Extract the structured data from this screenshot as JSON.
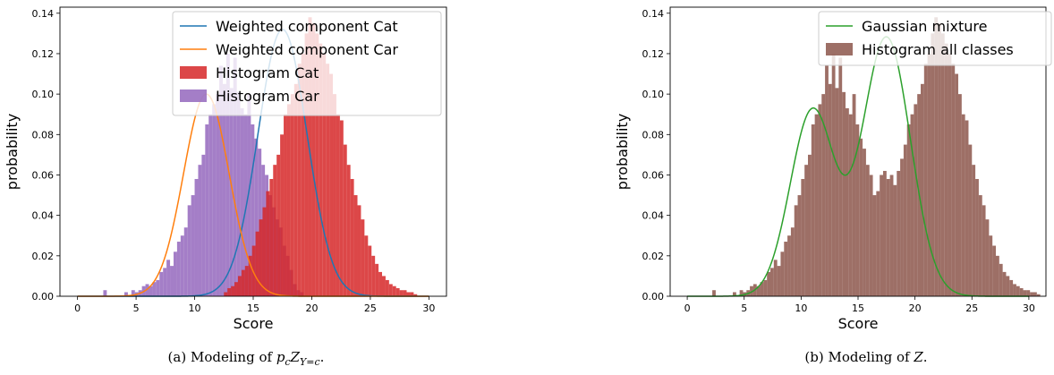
{
  "chart_data": [
    {
      "type": "histogram+line",
      "xlabel": "Score",
      "ylabel": "probability",
      "xlim": [
        -1.5,
        31.5
      ],
      "ylim": [
        0,
        0.143
      ],
      "xticks": [
        0,
        5,
        10,
        15,
        20,
        25,
        30
      ],
      "yticks": [
        0.0,
        0.02,
        0.04,
        0.06,
        0.08,
        0.1,
        0.12,
        0.14
      ],
      "legend_position": "top-right",
      "legend": [
        "Weighted component Cat",
        "Weighted component Car",
        "Histogram Cat",
        "Histogram Car"
      ],
      "caption_prefix": "(a) Modeling of ",
      "caption_math": "p",
      "caption_sub": "c",
      "caption_math2": "Z",
      "caption_sub2": "Y=c",
      "caption_end": ".",
      "histograms": [
        {
          "name": "Histogram Car",
          "color": "#9467bd",
          "bin_width": 0.3,
          "start": 2.2,
          "values": [
            0.003,
            0,
            0,
            0,
            0,
            0,
            0.002,
            0,
            0.003,
            0.002,
            0.003,
            0.005,
            0.006,
            0.005,
            0.007,
            0.008,
            0.012,
            0.014,
            0.018,
            0.015,
            0.022,
            0.027,
            0.03,
            0.034,
            0.045,
            0.05,
            0.058,
            0.065,
            0.07,
            0.085,
            0.09,
            0.095,
            0.1,
            0.114,
            0.105,
            0.12,
            0.103,
            0.118,
            0.101,
            0.093,
            0.09,
            0.1,
            0.085,
            0.078,
            0.073,
            0.065,
            0.06,
            0.05,
            0.044,
            0.038,
            0.034,
            0.025,
            0.02,
            0.013,
            0.006,
            0.003,
            0.002
          ]
        },
        {
          "name": "Histogram Cat",
          "color": "#d62728",
          "bin_width": 0.3,
          "start": 12.5,
          "values": [
            0.002,
            0.004,
            0.005,
            0.007,
            0.01,
            0.013,
            0.015,
            0.02,
            0.025,
            0.032,
            0.038,
            0.044,
            0.052,
            0.058,
            0.065,
            0.07,
            0.08,
            0.09,
            0.095,
            0.1,
            0.105,
            0.115,
            0.12,
            0.13,
            0.138,
            0.135,
            0.13,
            0.125,
            0.12,
            0.115,
            0.11,
            0.1,
            0.09,
            0.087,
            0.075,
            0.065,
            0.058,
            0.05,
            0.045,
            0.038,
            0.03,
            0.025,
            0.02,
            0.016,
            0.012,
            0.01,
            0.008,
            0.006,
            0.005,
            0.004,
            0.003,
            0.003,
            0.002,
            0.002,
            0.001
          ]
        }
      ],
      "series": [
        {
          "name": "Weighted component Cat",
          "color": "#1f77b4",
          "mean": 17.5,
          "sd": 2.1,
          "peak": 0.132
        },
        {
          "name": "Weighted component Car",
          "color": "#ff7f0e",
          "mean": 11.0,
          "sd": 1.95,
          "peak": 0.1
        }
      ],
      "x_range": [
        0,
        30
      ]
    },
    {
      "type": "histogram+line",
      "xlabel": "Score",
      "ylabel": "probability",
      "xlim": [
        -1.5,
        31.5
      ],
      "ylim": [
        0,
        0.143
      ],
      "xticks": [
        0,
        5,
        10,
        15,
        20,
        25,
        30
      ],
      "yticks": [
        0.0,
        0.02,
        0.04,
        0.06,
        0.08,
        0.1,
        0.12,
        0.14
      ],
      "legend_position": "top-right",
      "legend": [
        "Gaussian mixture",
        "Histogram all classes"
      ],
      "caption_prefix": "(b) Modeling of ",
      "caption_math": "Z",
      "caption_end": ".",
      "histograms": [
        {
          "name": "Histogram all classes",
          "color": "#8c564b",
          "bin_width": 0.3,
          "start": 2.2,
          "values": [
            0.003,
            0,
            0,
            0,
            0,
            0,
            0.002,
            0,
            0.003,
            0.002,
            0.003,
            0.005,
            0.006,
            0.005,
            0.007,
            0.008,
            0.012,
            0.014,
            0.018,
            0.015,
            0.022,
            0.027,
            0.03,
            0.034,
            0.045,
            0.05,
            0.058,
            0.065,
            0.07,
            0.085,
            0.09,
            0.095,
            0.1,
            0.114,
            0.105,
            0.12,
            0.103,
            0.118,
            0.101,
            0.093,
            0.09,
            0.1,
            0.085,
            0.078,
            0.073,
            0.065,
            0.06,
            0.05,
            0.052,
            0.06,
            0.062,
            0.058,
            0.06,
            0.055,
            0.062,
            0.068,
            0.075,
            0.085,
            0.09,
            0.095,
            0.1,
            0.105,
            0.115,
            0.12,
            0.13,
            0.138,
            0.135,
            0.13,
            0.125,
            0.12,
            0.115,
            0.11,
            0.1,
            0.09,
            0.087,
            0.075,
            0.065,
            0.058,
            0.05,
            0.045,
            0.038,
            0.03,
            0.025,
            0.02,
            0.016,
            0.012,
            0.01,
            0.008,
            0.006,
            0.005,
            0.004,
            0.003,
            0.003,
            0.002,
            0.002,
            0.001
          ]
        }
      ],
      "series": [
        {
          "name": "Gaussian mixture",
          "color": "#2ca02c",
          "components": [
            {
              "mean": 11.0,
              "sd": 1.95,
              "peak": 0.092
            },
            {
              "mean": 17.5,
              "sd": 2.1,
              "peak": 0.128
            }
          ]
        }
      ],
      "x_range": [
        0,
        30
      ]
    }
  ]
}
